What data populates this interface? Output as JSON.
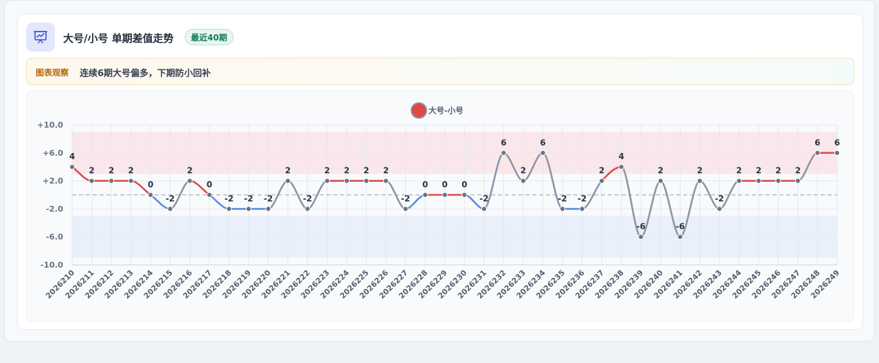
{
  "header": {
    "icon": "presentation-chart-icon",
    "title": "大号/小号 单期差值走势",
    "badge": "最近40期"
  },
  "observation": {
    "label": "图表观察",
    "text": "连续6期大号偏多，下期防小回补"
  },
  "colors": {
    "positive": "#d94b4b",
    "negative": "#5b8de0",
    "neutral": "#8b95a7",
    "point": "#6b7280",
    "band_high": "#fae3e8",
    "band_low": "#e6edf9",
    "legend_dot": "#e04848"
  },
  "chart_data": {
    "type": "line",
    "legend": {
      "label": "大号-小号",
      "position": "top-center"
    },
    "x": [
      "2026210",
      "2026211",
      "2026212",
      "2026213",
      "2026214",
      "2026215",
      "2026216",
      "2026217",
      "2026218",
      "2026219",
      "2026220",
      "2026221",
      "2026222",
      "2026223",
      "2026224",
      "2026225",
      "2026226",
      "2026227",
      "2026228",
      "2026229",
      "2026230",
      "2026231",
      "2026232",
      "2026233",
      "2026234",
      "2026235",
      "2026236",
      "2026237",
      "2026238",
      "2026239",
      "2026240",
      "2026241",
      "2026242",
      "2026243",
      "2026244",
      "2026245",
      "2026246",
      "2026247",
      "2026248",
      "2026249"
    ],
    "series": [
      {
        "name": "大号-小号",
        "values": [
          4,
          2,
          2,
          2,
          0,
          -2,
          2,
          0,
          -2,
          -2,
          -2,
          2,
          -2,
          2,
          2,
          2,
          2,
          -2,
          0,
          0,
          0,
          -2,
          6,
          2,
          6,
          -2,
          -2,
          2,
          4,
          -6,
          2,
          -6,
          2,
          -2,
          2,
          2,
          2,
          2,
          6,
          6
        ]
      }
    ],
    "ylim": [
      -10,
      10
    ],
    "yticks": [
      10,
      6,
      2,
      -2,
      -6,
      -10
    ],
    "ytick_labels": [
      "+10.0",
      "+6.0",
      "+2.0",
      "-2.0",
      "-6.0",
      "-10.0"
    ],
    "bands": [
      {
        "from": 3,
        "to": 9,
        "tone": "high"
      },
      {
        "from": -9,
        "to": -3,
        "tone": "low"
      }
    ],
    "reference_line": 0,
    "grid": true,
    "data_labels": true
  }
}
